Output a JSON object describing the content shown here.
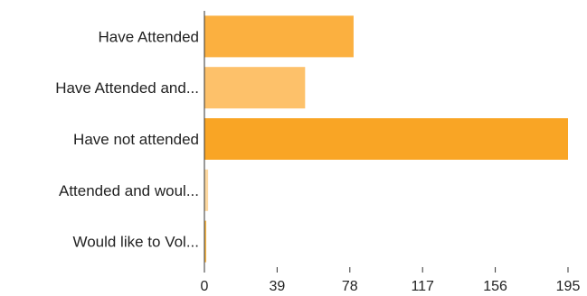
{
  "chart_data": {
    "type": "bar",
    "orientation": "horizontal",
    "categories": [
      "Have Attended",
      "Have Attended and...",
      "Have not attended",
      "Attended and woul...",
      "Would like to Vol..."
    ],
    "values": [
      80,
      54,
      195,
      2,
      1
    ],
    "bar_colors": [
      "#fbb040",
      "#fdc16a",
      "#f9a525",
      "#fdd8a0",
      "#f9b84a"
    ],
    "xlim": [
      0,
      195
    ],
    "xticks": [
      "0",
      "39",
      "78",
      "117",
      "156",
      "195"
    ],
    "title": "",
    "xlabel": "",
    "ylabel": "",
    "grid": false,
    "legend": "none"
  }
}
